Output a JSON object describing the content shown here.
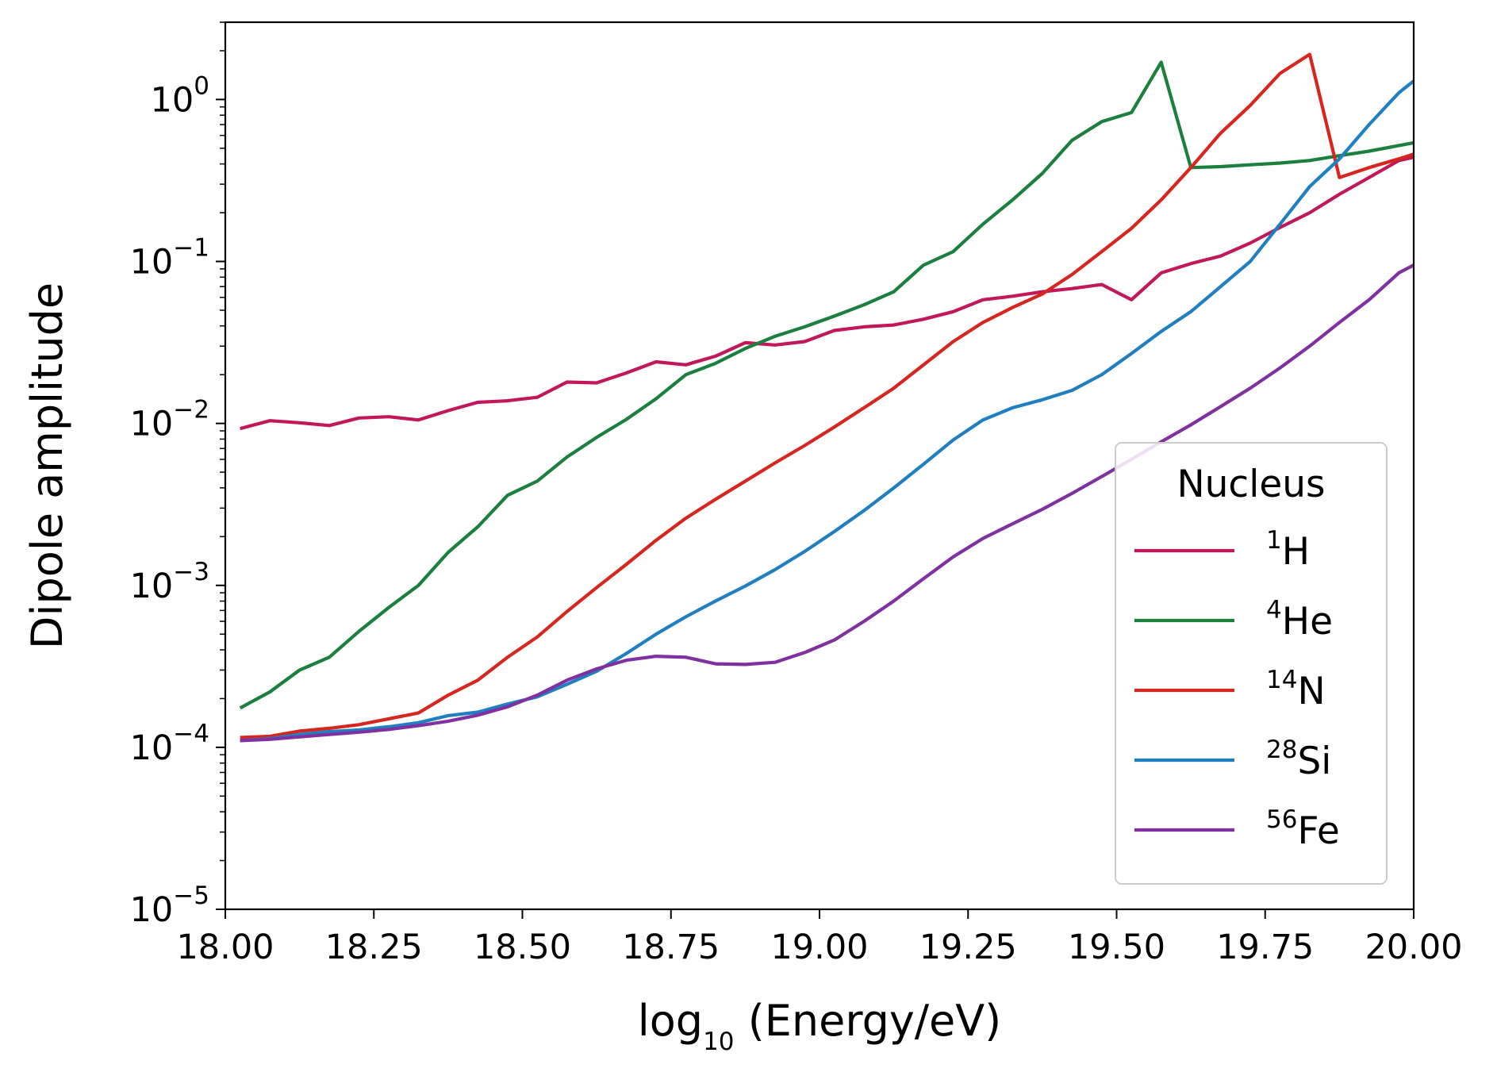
{
  "chart_data": {
    "type": "line",
    "xlabel": "log10 (Energy/eV)",
    "xlabel_parts": {
      "pre": "log",
      "sub": "10",
      "post": " (Energy/eV)"
    },
    "ylabel": "Dipole amplitude",
    "xlim": [
      18.0,
      20.0
    ],
    "ylim": [
      1e-05,
      3.0
    ],
    "yscale": "log",
    "grid": false,
    "legend_position": "bottom-right",
    "x_ticks": [
      18.0,
      18.25,
      18.5,
      18.75,
      19.0,
      19.25,
      19.5,
      19.75,
      20.0
    ],
    "x_tick_labels": [
      "18.00",
      "18.25",
      "18.50",
      "18.75",
      "19.00",
      "19.25",
      "19.50",
      "19.75",
      "20.00"
    ],
    "y_ticks": [
      1e-05,
      0.0001,
      0.001,
      0.01,
      0.1,
      1
    ],
    "y_tick_labels": [
      {
        "base": "10",
        "exp": "−5"
      },
      {
        "base": "10",
        "exp": "−4"
      },
      {
        "base": "10",
        "exp": "−3"
      },
      {
        "base": "10",
        "exp": "−2"
      },
      {
        "base": "10",
        "exp": "−1"
      },
      {
        "base": "10",
        "exp": "0"
      }
    ],
    "legend": {
      "title": "Nucleus",
      "entries": [
        {
          "sup": "1",
          "symbol": "H",
          "color": "#c2185b"
        },
        {
          "sup": "4",
          "symbol": "He",
          "color": "#1b7f3e"
        },
        {
          "sup": "14",
          "symbol": "N",
          "color": "#d7261e"
        },
        {
          "sup": "28",
          "symbol": "Si",
          "color": "#1f7fc0"
        },
        {
          "sup": "56",
          "symbol": "Fe",
          "color": "#8030a0"
        }
      ]
    },
    "x": [
      18.025,
      18.075,
      18.125,
      18.175,
      18.225,
      18.275,
      18.325,
      18.375,
      18.425,
      18.475,
      18.525,
      18.575,
      18.625,
      18.675,
      18.725,
      18.775,
      18.825,
      18.875,
      18.925,
      18.975,
      19.025,
      19.075,
      19.125,
      19.175,
      19.225,
      19.275,
      19.325,
      19.375,
      19.425,
      19.475,
      19.525,
      19.575,
      19.625,
      19.675,
      19.725,
      19.775,
      19.825,
      19.875,
      19.925,
      19.975,
      20.0
    ],
    "series": [
      {
        "name": "1H",
        "color": "#c2185b",
        "values": [
          0.0093,
          0.0104,
          0.0101,
          0.0097,
          0.0108,
          0.011,
          0.0105,
          0.012,
          0.0135,
          0.0138,
          0.0145,
          0.018,
          0.0178,
          0.0205,
          0.024,
          0.023,
          0.026,
          0.0315,
          0.0305,
          0.032,
          0.0375,
          0.0395,
          0.0405,
          0.044,
          0.049,
          0.058,
          0.061,
          0.065,
          0.068,
          0.072,
          0.058,
          0.085,
          0.097,
          0.108,
          0.13,
          0.162,
          0.2,
          0.26,
          0.33,
          0.42,
          0.44
        ]
      },
      {
        "name": "4He",
        "color": "#1b7f3e",
        "values": [
          0.000175,
          0.00022,
          0.0003,
          0.00036,
          0.00052,
          0.00073,
          0.001,
          0.0016,
          0.0023,
          0.0036,
          0.0044,
          0.0062,
          0.0082,
          0.0106,
          0.0142,
          0.02,
          0.0235,
          0.029,
          0.0345,
          0.0395,
          0.046,
          0.054,
          0.065,
          0.095,
          0.115,
          0.17,
          0.24,
          0.35,
          0.56,
          0.73,
          0.83,
          1.7,
          0.38,
          0.385,
          0.395,
          0.405,
          0.42,
          0.45,
          0.48,
          0.52,
          0.54
        ]
      },
      {
        "name": "14N",
        "color": "#d7261e",
        "values": [
          0.000115,
          0.000117,
          0.000126,
          0.000131,
          0.000138,
          0.00015,
          0.000163,
          0.00021,
          0.00026,
          0.00036,
          0.00048,
          0.00069,
          0.00097,
          0.00135,
          0.0019,
          0.0026,
          0.0034,
          0.0044,
          0.0057,
          0.0073,
          0.0095,
          0.0125,
          0.0165,
          0.023,
          0.032,
          0.042,
          0.052,
          0.063,
          0.083,
          0.115,
          0.16,
          0.24,
          0.38,
          0.62,
          0.92,
          1.45,
          1.9,
          0.33,
          0.38,
          0.43,
          0.46
        ]
      },
      {
        "name": "28Si",
        "color": "#1f7fc0",
        "values": [
          0.00011,
          0.000113,
          0.00012,
          0.000125,
          0.000128,
          0.000134,
          0.000142,
          0.000157,
          0.000165,
          0.000185,
          0.000205,
          0.000245,
          0.000295,
          0.00038,
          0.0005,
          0.00064,
          0.0008,
          0.00099,
          0.00125,
          0.00162,
          0.00215,
          0.0029,
          0.004,
          0.0056,
          0.0079,
          0.0105,
          0.0125,
          0.014,
          0.016,
          0.02,
          0.027,
          0.037,
          0.049,
          0.07,
          0.1,
          0.17,
          0.29,
          0.43,
          0.7,
          1.1,
          1.3
        ]
      },
      {
        "name": "56Fe",
        "color": "#8030a0",
        "values": [
          0.00011,
          0.000112,
          0.000116,
          0.00012,
          0.000124,
          0.000129,
          0.000136,
          0.000145,
          0.000158,
          0.000178,
          0.00021,
          0.00026,
          0.000305,
          0.000345,
          0.000365,
          0.00036,
          0.000328,
          0.000325,
          0.000335,
          0.000385,
          0.00046,
          0.0006,
          0.0008,
          0.0011,
          0.0015,
          0.00195,
          0.0024,
          0.00295,
          0.0037,
          0.0047,
          0.006,
          0.0077,
          0.0098,
          0.0127,
          0.0165,
          0.022,
          0.03,
          0.042,
          0.058,
          0.085,
          0.095
        ]
      }
    ]
  }
}
